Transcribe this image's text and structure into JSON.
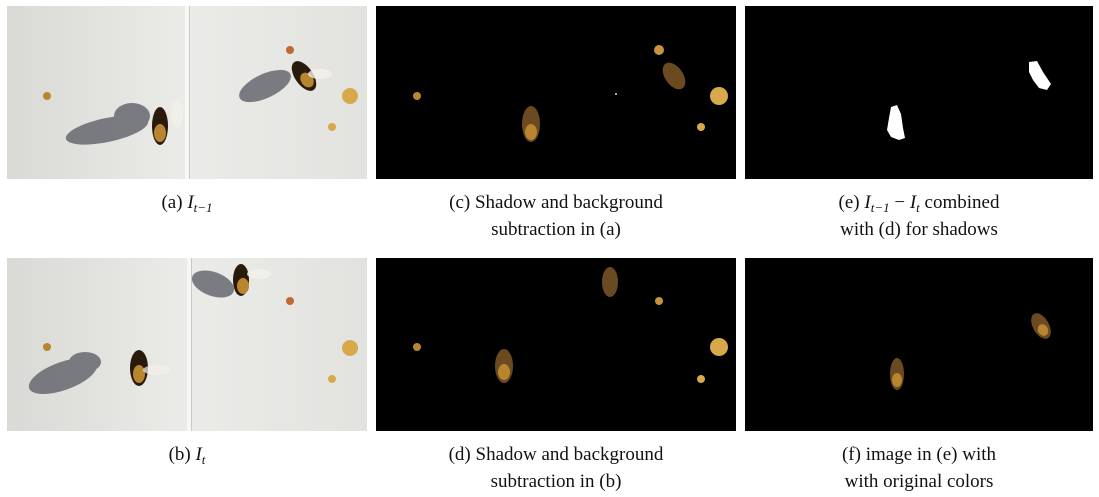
{
  "captions": {
    "a": {
      "label": "(a) ",
      "var": "I",
      "sub": "t−1"
    },
    "b": {
      "label": "(b) ",
      "var": "I",
      "sub": "t"
    },
    "c": {
      "line1": "(c) Shadow and background",
      "line2": "subtraction in (a)"
    },
    "d": {
      "line1": "(d) Shadow and background",
      "line2": "subtraction in (b)"
    },
    "e": {
      "prefix": "(e) ",
      "var1": "I",
      "sub1": "t−1",
      "minus": " − ",
      "var2": "I",
      "sub2": "t",
      "suffix": " combined",
      "line2": "with (d) for shadows"
    },
    "f": {
      "line1": "(f) image in (e) with",
      "line2": "with original colors"
    }
  },
  "colors": {
    "bee_dark": "#2a1a0c",
    "bee_amber": "#b8862f",
    "pollen": "#d7a94a",
    "board": "#e6e6e3",
    "shadow": "#5f6168"
  }
}
